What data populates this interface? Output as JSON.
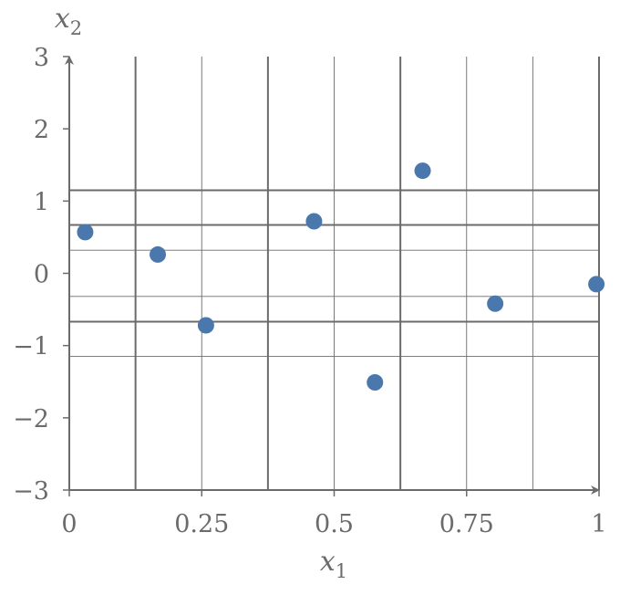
{
  "chart_data": {
    "type": "scatter",
    "xlabel": "x_1",
    "ylabel": "x_2",
    "xlim": [
      0,
      1
    ],
    "ylim": [
      -3,
      3
    ],
    "xticks": [
      0,
      0.25,
      0.5,
      0.75,
      1
    ],
    "xtick_labels": [
      "0",
      "0.25",
      "0.5",
      "0.75",
      "1"
    ],
    "yticks": [
      3,
      2,
      1,
      0,
      -1,
      -2,
      -3
    ],
    "ytick_labels": [
      "3",
      "2",
      "1",
      "0",
      "−1",
      "−2",
      "−3"
    ],
    "grid": "on",
    "vertical_grid_thin": [
      0.25,
      0.5,
      0.75,
      0.875
    ],
    "vertical_grid_thick": [
      0.125,
      0.375,
      0.625,
      1
    ],
    "horizontal_grid_thin": [
      0.32,
      -0.32,
      -1.15
    ],
    "horizontal_grid_thick": [
      1.15,
      0.67,
      -0.67
    ],
    "points": [
      {
        "x": 0.03,
        "y": 0.57
      },
      {
        "x": 0.167,
        "y": 0.26
      },
      {
        "x": 0.258,
        "y": -0.72
      },
      {
        "x": 0.462,
        "y": 0.72
      },
      {
        "x": 0.577,
        "y": -1.51
      },
      {
        "x": 0.667,
        "y": 1.42
      },
      {
        "x": 0.804,
        "y": -0.42
      },
      {
        "x": 0.995,
        "y": -0.15
      }
    ],
    "colors": {
      "points": "#4b78ac",
      "axes": "#6b6b6b",
      "grid": "#6b6b6b"
    }
  }
}
